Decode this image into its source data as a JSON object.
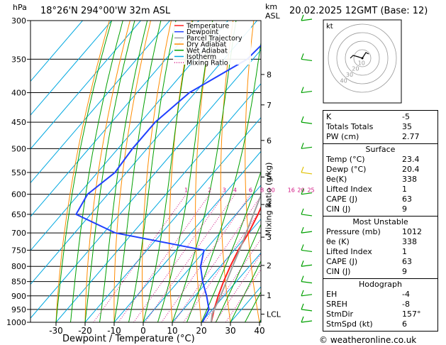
{
  "header": {
    "pressure_unit": "hPa",
    "location": "18°26'N  294°00'W  32m  ASL",
    "height_unit_line1": "km",
    "height_unit_line2": "ASL",
    "datetime": "20.02.2025  12GMT  (Base: 12)"
  },
  "footer": {
    "xlabel": "Dewpoint / Temperature (°C)",
    "credit": "© weatheronline.co.uk"
  },
  "legend": [
    {
      "label": "Temperature",
      "color": "#ff2020",
      "style": "solid"
    },
    {
      "label": "Dewpoint",
      "color": "#2040ff",
      "style": "solid"
    },
    {
      "label": "Parcel Trajectory",
      "color": "#a0a0a0",
      "style": "solid"
    },
    {
      "label": "Dry Adiabat",
      "color": "#ff8c00",
      "style": "solid"
    },
    {
      "label": "Wet Adiabat",
      "color": "#00a000",
      "style": "solid"
    },
    {
      "label": "Isotherm",
      "color": "#00a8e0",
      "style": "solid"
    },
    {
      "label": "Mixing Ratio",
      "color": "#d01080",
      "style": "dotted"
    }
  ],
  "chart_data": {
    "type": "line",
    "diagram": "skew-T log-P",
    "y_pressure_ticks": [
      300,
      350,
      400,
      450,
      500,
      550,
      600,
      650,
      700,
      750,
      800,
      850,
      900,
      950,
      1000
    ],
    "x_temp_ticks": [
      -30,
      -20,
      -10,
      0,
      10,
      20,
      30,
      40
    ],
    "xlim": [
      -40,
      40
    ],
    "ylim_hpa": [
      1000,
      300
    ],
    "ylabel_right": "Mixing Ratio (g/kg)",
    "height_ticks_km": [
      {
        "label": "8",
        "p": 372
      },
      {
        "label": "7",
        "p": 420
      },
      {
        "label": "6",
        "p": 484
      },
      {
        "label": "5",
        "p": 560
      },
      {
        "label": "4",
        "p": 625
      },
      {
        "label": "3",
        "p": 712
      },
      {
        "label": "2",
        "p": 797
      },
      {
        "label": "1",
        "p": 898
      },
      {
        "label": "LCL",
        "p": 968
      }
    ],
    "mixing_ratio_labels": [
      "1",
      "2",
      "3",
      "4",
      "6",
      "8",
      "10",
      "16",
      "20",
      "25"
    ],
    "mixing_ratio_values": [
      1,
      2,
      3,
      4,
      6,
      8,
      10,
      16,
      20,
      25
    ],
    "series": [
      {
        "name": "Temperature",
        "color": "#ff2020",
        "points": [
          [
            1000,
            23.4
          ],
          [
            950,
            20.6
          ],
          [
            900,
            18
          ],
          [
            850,
            15.6
          ],
          [
            800,
            13.4
          ],
          [
            750,
            11.4
          ],
          [
            700,
            9.8
          ],
          [
            650,
            7.6
          ],
          [
            600,
            4.6
          ],
          [
            550,
            0.6
          ],
          [
            500,
            -4
          ],
          [
            450,
            -7.6
          ],
          [
            400,
            -12.6
          ],
          [
            350,
            -18.8
          ],
          [
            300,
            -28.4
          ]
        ]
      },
      {
        "name": "Dewpoint",
        "color": "#2040ff",
        "points": [
          [
            1000,
            20.4
          ],
          [
            950,
            18.8
          ],
          [
            900,
            14
          ],
          [
            850,
            8.4
          ],
          [
            800,
            3.2
          ],
          [
            750,
            -0.4
          ],
          [
            700,
            -36
          ],
          [
            650,
            -55
          ],
          [
            600,
            -57
          ],
          [
            550,
            -54
          ],
          [
            500,
            -55
          ],
          [
            450,
            -55
          ],
          [
            400,
            -52
          ],
          [
            350,
            -42
          ],
          [
            300,
            -40
          ]
        ]
      },
      {
        "name": "Parcel Trajectory",
        "color": "#a0a0a0",
        "points": [
          [
            1000,
            23.4
          ],
          [
            968,
            21.3
          ],
          [
            900,
            18.8
          ],
          [
            850,
            16.6
          ],
          [
            800,
            14.2
          ],
          [
            750,
            11.8
          ],
          [
            700,
            9
          ],
          [
            650,
            6
          ],
          [
            600,
            2.8
          ],
          [
            550,
            -0.9
          ],
          [
            500,
            -5.2
          ],
          [
            450,
            -10.2
          ],
          [
            400,
            -16
          ],
          [
            350,
            -23.2
          ],
          [
            300,
            -32
          ]
        ]
      }
    ]
  },
  "indices": [
    {
      "label": "K",
      "value": "-5"
    },
    {
      "label": "Totals Totals",
      "value": "35"
    },
    {
      "label": "PW (cm)",
      "value": "2.77"
    }
  ],
  "surface": {
    "title": "Surface",
    "rows": [
      {
        "label": "Temp (°C)",
        "value": "23.4"
      },
      {
        "label": "Dewp (°C)",
        "value": "20.4"
      },
      {
        "label": "θe(K)",
        "value": "338"
      },
      {
        "label": "Lifted Index",
        "value": "1"
      },
      {
        "label": "CAPE (J)",
        "value": "63"
      },
      {
        "label": "CIN (J)",
        "value": "9"
      }
    ]
  },
  "most_unstable": {
    "title": "Most Unstable",
    "rows": [
      {
        "label": "Pressure (mb)",
        "value": "1012"
      },
      {
        "label": "θe (K)",
        "value": "338"
      },
      {
        "label": "Lifted Index",
        "value": "1"
      },
      {
        "label": "CAPE (J)",
        "value": "63"
      },
      {
        "label": "CIN (J)",
        "value": "9"
      }
    ]
  },
  "hodograph_table": {
    "title": "Hodograph",
    "rows": [
      {
        "label": "EH",
        "value": "-4"
      },
      {
        "label": "SREH",
        "value": "-8"
      },
      {
        "label": "StmDir",
        "value": "157°"
      },
      {
        "label": "StmSpd (kt)",
        "value": "6"
      }
    ]
  },
  "hodograph": {
    "unit": "kt",
    "ring_labels": [
      "10",
      "20",
      "30",
      "40"
    ]
  }
}
